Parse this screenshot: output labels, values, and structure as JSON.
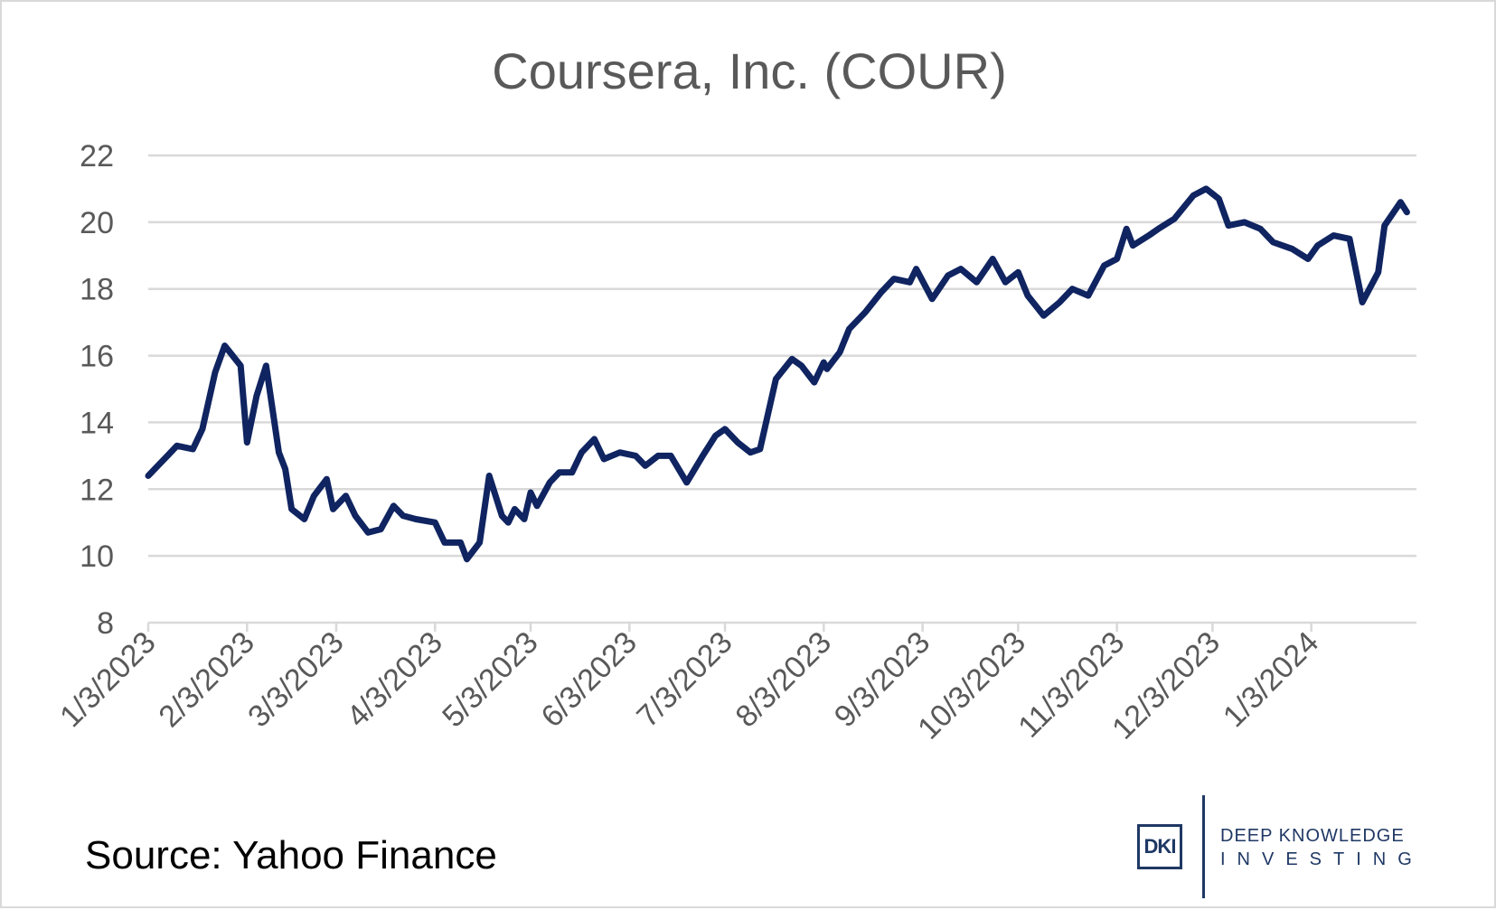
{
  "source_text": "Source: Yahoo Finance",
  "logo": {
    "mark": "DKI",
    "line1": "DEEP KNOWLEDGE",
    "line2": "INVESTING",
    "color": "#1f3864"
  },
  "chart_data": {
    "type": "line",
    "title": "Coursera, Inc. (COUR)",
    "xlabel": "",
    "ylabel": "",
    "ylim": [
      8,
      22
    ],
    "yticks": [
      "8",
      "10",
      "12",
      "14",
      "16",
      "18",
      "20",
      "22"
    ],
    "xticks": [
      "1/3/2023",
      "2/3/2023",
      "3/3/2023",
      "4/3/2023",
      "5/3/2023",
      "6/3/2023",
      "7/3/2023",
      "8/3/2023",
      "9/3/2023",
      "10/3/2023",
      "11/3/2023",
      "12/3/2023",
      "1/3/2024"
    ],
    "grid": true,
    "series_color": "#0f2460",
    "x": [
      "2023-01-03",
      "2023-01-05",
      "2023-01-09",
      "2023-01-12",
      "2023-01-17",
      "2023-01-20",
      "2023-01-24",
      "2023-01-27",
      "2023-02-01",
      "2023-02-03",
      "2023-02-06",
      "2023-02-09",
      "2023-02-13",
      "2023-02-15",
      "2023-02-17",
      "2023-02-21",
      "2023-02-24",
      "2023-02-28",
      "2023-03-02",
      "2023-03-06",
      "2023-03-09",
      "2023-03-13",
      "2023-03-17",
      "2023-03-21",
      "2023-03-24",
      "2023-03-28",
      "2023-04-03",
      "2023-04-06",
      "2023-04-11",
      "2023-04-13",
      "2023-04-17",
      "2023-04-20",
      "2023-04-24",
      "2023-04-26",
      "2023-04-28",
      "2023-05-01",
      "2023-05-03",
      "2023-05-05",
      "2023-05-09",
      "2023-05-12",
      "2023-05-16",
      "2023-05-19",
      "2023-05-23",
      "2023-05-26",
      "2023-05-31",
      "2023-06-05",
      "2023-06-08",
      "2023-06-12",
      "2023-06-16",
      "2023-06-21",
      "2023-06-26",
      "2023-06-30",
      "2023-07-03",
      "2023-07-07",
      "2023-07-11",
      "2023-07-14",
      "2023-07-19",
      "2023-07-24",
      "2023-07-27",
      "2023-07-31",
      "2023-08-03",
      "2023-08-04",
      "2023-08-08",
      "2023-08-11",
      "2023-08-16",
      "2023-08-21",
      "2023-08-25",
      "2023-08-30",
      "2023-09-01",
      "2023-09-06",
      "2023-09-11",
      "2023-09-15",
      "2023-09-20",
      "2023-09-25",
      "2023-09-29",
      "2023-10-03",
      "2023-10-06",
      "2023-10-11",
      "2023-10-16",
      "2023-10-20",
      "2023-10-25",
      "2023-10-30",
      "2023-11-03",
      "2023-11-06",
      "2023-11-08",
      "2023-11-13",
      "2023-11-16",
      "2023-11-21",
      "2023-11-27",
      "2023-12-01",
      "2023-12-05",
      "2023-12-08",
      "2023-12-13",
      "2023-12-18",
      "2023-12-22",
      "2023-12-28",
      "2024-01-02",
      "2024-01-05",
      "2024-01-10",
      "2024-01-15",
      "2024-01-19",
      "2024-01-24",
      "2024-01-26",
      "2024-01-31",
      "2024-02-02"
    ],
    "values": [
      12.4,
      12.6,
      13.0,
      13.3,
      13.2,
      13.8,
      15.5,
      16.3,
      15.7,
      13.4,
      14.8,
      15.7,
      13.1,
      12.6,
      11.4,
      11.1,
      11.8,
      12.3,
      11.4,
      11.8,
      11.2,
      10.7,
      10.8,
      11.5,
      11.2,
      11.1,
      11.0,
      10.4,
      10.4,
      9.9,
      10.4,
      12.4,
      11.2,
      11.0,
      11.4,
      11.1,
      11.9,
      11.5,
      12.2,
      12.5,
      12.5,
      13.1,
      13.5,
      12.9,
      13.1,
      13.0,
      12.7,
      13.0,
      13.0,
      12.2,
      13.0,
      13.6,
      13.8,
      13.4,
      13.1,
      13.2,
      15.3,
      15.9,
      15.7,
      15.2,
      15.8,
      15.6,
      16.1,
      16.8,
      17.3,
      17.9,
      18.3,
      18.2,
      18.6,
      17.7,
      18.4,
      18.6,
      18.2,
      18.9,
      18.2,
      18.5,
      17.8,
      17.2,
      17.6,
      18.0,
      17.8,
      18.7,
      18.9,
      19.8,
      19.3,
      19.6,
      19.8,
      20.1,
      20.8,
      21.0,
      20.7,
      19.9,
      20.0,
      19.8,
      19.4,
      19.2,
      18.9,
      19.3,
      19.6,
      19.5,
      17.6,
      18.5,
      19.9,
      20.6,
      20.3
    ]
  }
}
